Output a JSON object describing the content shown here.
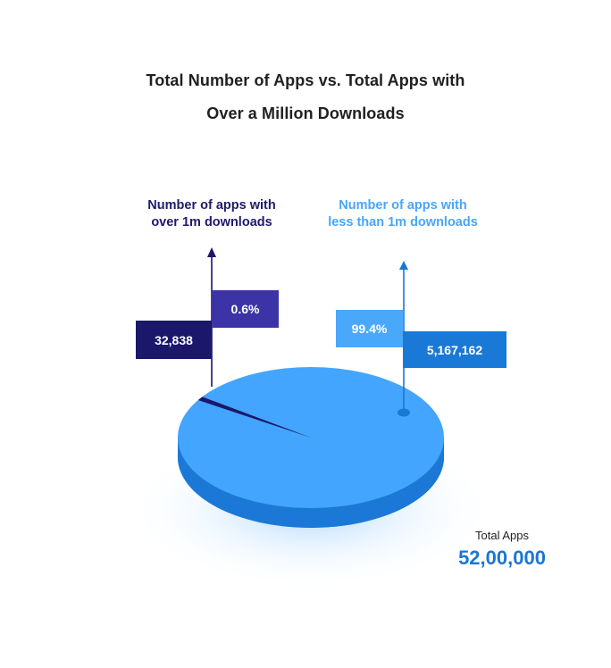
{
  "title": {
    "line1": "Total Number of Apps vs. Total Apps with",
    "line2": "Over a Million Downloads"
  },
  "colors": {
    "pie_top": "#43a5fd",
    "pie_side": "#1b78d6",
    "small_slice": "#1b176a",
    "left_pointer": "#1b176a",
    "right_pointer": "#1a78d6"
  },
  "callouts": {
    "left": {
      "line1": "Number of apps with",
      "line2": "over 1m downloads",
      "percent": "0.6%",
      "count": "32,838"
    },
    "right": {
      "line1": "Number of apps with",
      "line2": "less than 1m downloads",
      "percent": "99.4%",
      "count": "5,167,162"
    }
  },
  "total": {
    "label": "Total Apps",
    "value": "52,00,000"
  },
  "chart_data": {
    "type": "pie",
    "title": "Total Number of Apps vs. Total Apps with Over a Million Downloads",
    "slices": [
      {
        "label": "Number of apps with over 1m downloads",
        "percent": 0.6,
        "value": 32838
      },
      {
        "label": "Number of apps with less than 1m downloads",
        "percent": 99.4,
        "value": 5167162
      }
    ],
    "total": 5200000
  }
}
